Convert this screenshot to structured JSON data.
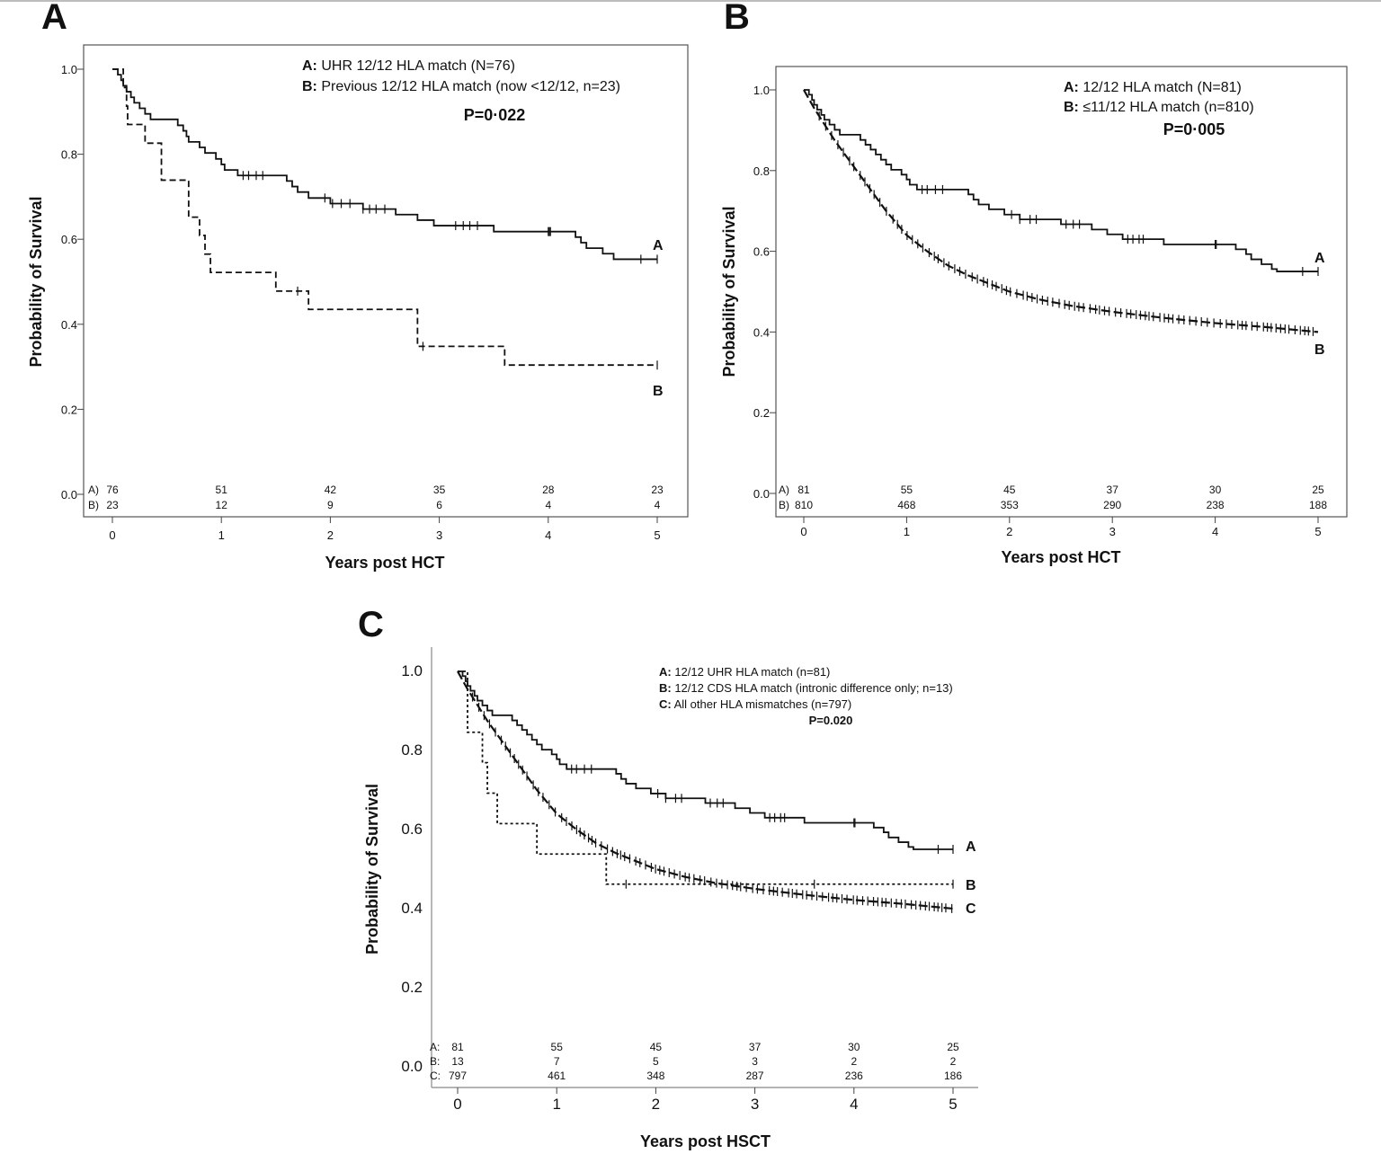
{
  "chart_data": [
    {
      "panel": "A",
      "type": "line",
      "xlabel": "Years post HCT",
      "ylabel": "Probability of Survival",
      "xlim": [
        0,
        5
      ],
      "ylim": [
        0,
        1
      ],
      "xticks": [
        "0",
        "1",
        "2",
        "3",
        "4",
        "5"
      ],
      "yticks": [
        "0.0",
        "0.2",
        "0.4",
        "0.6",
        "0.8",
        "1.0"
      ],
      "legend": {
        "position": "top-right",
        "entries": [
          {
            "key": "A:",
            "text": "UHR 12/12 HLA match (N=76)"
          },
          {
            "key": "B:",
            "text": "Previous 12/12 HLA match (now <12/12, n=23)"
          }
        ]
      },
      "pvalue": "P=0·022",
      "series": [
        {
          "label": "A",
          "style": "solid",
          "steps": [
            [
              0,
              1.0
            ],
            [
              0.05,
              0.987
            ],
            [
              0.08,
              0.974
            ],
            [
              0.1,
              0.961
            ],
            [
              0.13,
              0.947
            ],
            [
              0.17,
              0.934
            ],
            [
              0.2,
              0.921
            ],
            [
              0.25,
              0.908
            ],
            [
              0.3,
              0.895
            ],
            [
              0.35,
              0.882
            ],
            [
              0.6,
              0.868
            ],
            [
              0.65,
              0.855
            ],
            [
              0.68,
              0.842
            ],
            [
              0.7,
              0.829
            ],
            [
              0.8,
              0.816
            ],
            [
              0.85,
              0.803
            ],
            [
              0.95,
              0.789
            ],
            [
              1.0,
              0.776
            ],
            [
              1.03,
              0.763
            ],
            [
              1.15,
              0.75
            ],
            [
              1.6,
              0.737
            ],
            [
              1.65,
              0.724
            ],
            [
              1.7,
              0.711
            ],
            [
              1.8,
              0.697
            ],
            [
              2.0,
              0.684
            ],
            [
              2.3,
              0.671
            ],
            [
              2.6,
              0.658
            ],
            [
              2.8,
              0.645
            ],
            [
              2.95,
              0.632
            ],
            [
              3.5,
              0.618
            ],
            [
              4.25,
              0.605
            ],
            [
              4.3,
              0.592
            ],
            [
              4.35,
              0.579
            ],
            [
              4.5,
              0.566
            ],
            [
              4.6,
              0.553
            ],
            [
              5.0,
              0.553
            ]
          ],
          "censor": [
            1.2,
            1.25,
            1.32,
            1.38,
            1.95,
            2.02,
            2.1,
            2.18,
            2.3,
            2.36,
            2.42,
            2.5,
            3.15,
            3.22,
            3.28,
            3.35,
            4.0,
            4.01,
            4.02,
            4.85,
            5.0
          ]
        },
        {
          "label": "B",
          "style": "dashed",
          "steps": [
            [
              0,
              1.0
            ],
            [
              0.1,
              0.957
            ],
            [
              0.13,
              0.913
            ],
            [
              0.14,
              0.87
            ],
            [
              0.3,
              0.826
            ],
            [
              0.45,
              0.783
            ],
            [
              0.45,
              0.739
            ],
            [
              0.7,
              0.696
            ],
            [
              0.7,
              0.652
            ],
            [
              0.8,
              0.609
            ],
            [
              0.85,
              0.565
            ],
            [
              0.9,
              0.522
            ],
            [
              1.5,
              0.478
            ],
            [
              1.8,
              0.435
            ],
            [
              2.8,
              0.391
            ],
            [
              2.8,
              0.348
            ],
            [
              3.6,
              0.304
            ],
            [
              5.0,
              0.304
            ]
          ],
          "censor": [
            1.7,
            2.85,
            5.0
          ]
        }
      ],
      "risk_table": {
        "rows": [
          {
            "label": "A)",
            "values": [
              "76",
              "51",
              "42",
              "35",
              "28",
              "23"
            ]
          },
          {
            "label": "B)",
            "values": [
              "23",
              "12",
              "9",
              "6",
              "4",
              "4"
            ]
          }
        ]
      },
      "end_labels": [
        "A",
        "B"
      ]
    },
    {
      "panel": "B",
      "type": "line",
      "xlabel": "Years post HCT",
      "ylabel": "Probability of Survival",
      "xlim": [
        0,
        5
      ],
      "ylim": [
        0,
        1
      ],
      "xticks": [
        "0",
        "1",
        "2",
        "3",
        "4",
        "5"
      ],
      "yticks": [
        "0.0",
        "0.2",
        "0.4",
        "0.6",
        "0.8",
        "1.0"
      ],
      "legend": {
        "position": "top-right",
        "entries": [
          {
            "key": "A:",
            "text": "12/12 HLA match (N=81)"
          },
          {
            "key": "B:",
            "text": "≤11/12 HLA match (n=810)"
          }
        ]
      },
      "pvalue": "P=0·005",
      "series": [
        {
          "label": "A",
          "style": "solid",
          "steps": [
            [
              0,
              1.0
            ],
            [
              0.05,
              0.988
            ],
            [
              0.08,
              0.975
            ],
            [
              0.1,
              0.963
            ],
            [
              0.13,
              0.951
            ],
            [
              0.17,
              0.938
            ],
            [
              0.2,
              0.926
            ],
            [
              0.25,
              0.914
            ],
            [
              0.3,
              0.901
            ],
            [
              0.35,
              0.889
            ],
            [
              0.5,
              0.889
            ],
            [
              0.55,
              0.876
            ],
            [
              0.6,
              0.864
            ],
            [
              0.65,
              0.852
            ],
            [
              0.7,
              0.84
            ],
            [
              0.75,
              0.827
            ],
            [
              0.8,
              0.815
            ],
            [
              0.85,
              0.802
            ],
            [
              0.95,
              0.79
            ],
            [
              1.0,
              0.778
            ],
            [
              1.03,
              0.765
            ],
            [
              1.1,
              0.753
            ],
            [
              1.6,
              0.741
            ],
            [
              1.65,
              0.728
            ],
            [
              1.7,
              0.716
            ],
            [
              1.8,
              0.704
            ],
            [
              1.95,
              0.691
            ],
            [
              2.1,
              0.679
            ],
            [
              2.5,
              0.667
            ],
            [
              2.8,
              0.654
            ],
            [
              2.95,
              0.642
            ],
            [
              3.1,
              0.63
            ],
            [
              3.5,
              0.617
            ],
            [
              4.2,
              0.605
            ],
            [
              4.3,
              0.593
            ],
            [
              4.35,
              0.58
            ],
            [
              4.45,
              0.568
            ],
            [
              4.55,
              0.556
            ],
            [
              4.6,
              0.55
            ],
            [
              5.0,
              0.55
            ]
          ],
          "censor": [
            1.15,
            1.2,
            1.28,
            1.35,
            2.02,
            2.1,
            2.2,
            2.26,
            2.55,
            2.62,
            2.68,
            3.15,
            3.2,
            3.26,
            3.3,
            4.0,
            4.01,
            4.85,
            5.0
          ]
        },
        {
          "label": "B",
          "style": "dashed-curve",
          "points": [
            [
              0,
              1.0
            ],
            [
              0.1,
              0.955
            ],
            [
              0.2,
              0.915
            ],
            [
              0.3,
              0.875
            ],
            [
              0.4,
              0.84
            ],
            [
              0.5,
              0.805
            ],
            [
              0.6,
              0.77
            ],
            [
              0.7,
              0.735
            ],
            [
              0.8,
              0.7
            ],
            [
              0.9,
              0.67
            ],
            [
              1.0,
              0.64
            ],
            [
              1.2,
              0.6
            ],
            [
              1.4,
              0.565
            ],
            [
              1.6,
              0.54
            ],
            [
              1.8,
              0.52
            ],
            [
              2.0,
              0.5
            ],
            [
              2.3,
              0.48
            ],
            [
              2.6,
              0.465
            ],
            [
              3.0,
              0.45
            ],
            [
              3.5,
              0.435
            ],
            [
              4.0,
              0.422
            ],
            [
              4.5,
              0.412
            ],
            [
              5.0,
              0.4
            ]
          ],
          "censor_density": "dense"
        }
      ],
      "risk_table": {
        "rows": [
          {
            "label": "A)",
            "values": [
              "81",
              "55",
              "45",
              "37",
              "30",
              "25"
            ]
          },
          {
            "label": "B)",
            "values": [
              "810",
              "468",
              "353",
              "290",
              "238",
              "188"
            ]
          }
        ]
      },
      "end_labels": [
        "A",
        "B"
      ]
    },
    {
      "panel": "C",
      "type": "line",
      "xlabel": "Years post HSCT",
      "ylabel": "Probability of Survival",
      "xlim": [
        0,
        5
      ],
      "ylim": [
        0,
        1
      ],
      "xticks": [
        "0",
        "1",
        "2",
        "3",
        "4",
        "5"
      ],
      "yticks": [
        "0.0",
        "0.2",
        "0.4",
        "0.6",
        "0.8",
        "1.0"
      ],
      "legend": {
        "position": "top-right",
        "entries": [
          {
            "key": "A:",
            "text": "12/12 UHR HLA match (n=81)"
          },
          {
            "key": "B:",
            "text": "12/12 CDS HLA match (intronic difference only; n=13)"
          },
          {
            "key": "C:",
            "text": "All other HLA mismatches (n=797)"
          }
        ]
      },
      "pvalue": "P=0.020",
      "series": [
        {
          "label": "A",
          "style": "solid",
          "steps": [
            [
              0,
              1.0
            ],
            [
              0.05,
              0.988
            ],
            [
              0.08,
              0.975
            ],
            [
              0.1,
              0.963
            ],
            [
              0.13,
              0.951
            ],
            [
              0.17,
              0.938
            ],
            [
              0.2,
              0.926
            ],
            [
              0.25,
              0.914
            ],
            [
              0.3,
              0.901
            ],
            [
              0.35,
              0.889
            ],
            [
              0.5,
              0.889
            ],
            [
              0.55,
              0.876
            ],
            [
              0.6,
              0.864
            ],
            [
              0.65,
              0.852
            ],
            [
              0.7,
              0.84
            ],
            [
              0.75,
              0.827
            ],
            [
              0.8,
              0.815
            ],
            [
              0.85,
              0.802
            ],
            [
              0.95,
              0.79
            ],
            [
              1.0,
              0.778
            ],
            [
              1.03,
              0.765
            ],
            [
              1.1,
              0.753
            ],
            [
              1.6,
              0.741
            ],
            [
              1.65,
              0.728
            ],
            [
              1.7,
              0.716
            ],
            [
              1.8,
              0.704
            ],
            [
              1.95,
              0.691
            ],
            [
              2.1,
              0.679
            ],
            [
              2.5,
              0.667
            ],
            [
              2.8,
              0.654
            ],
            [
              2.95,
              0.642
            ],
            [
              3.1,
              0.63
            ],
            [
              3.5,
              0.617
            ],
            [
              4.2,
              0.605
            ],
            [
              4.3,
              0.593
            ],
            [
              4.35,
              0.58
            ],
            [
              4.45,
              0.568
            ],
            [
              4.55,
              0.556
            ],
            [
              4.6,
              0.55
            ],
            [
              5.0,
              0.55
            ]
          ],
          "censor": [
            1.15,
            1.2,
            1.28,
            1.35,
            2.02,
            2.1,
            2.2,
            2.26,
            2.55,
            2.62,
            2.68,
            3.15,
            3.2,
            3.26,
            3.3,
            4.0,
            4.01,
            4.85,
            5.0
          ]
        },
        {
          "label": "B",
          "style": "dotted",
          "steps": [
            [
              0,
              1.0
            ],
            [
              0.1,
              0.923
            ],
            [
              0.1,
              0.846
            ],
            [
              0.25,
              0.769
            ],
            [
              0.3,
              0.692
            ],
            [
              0.4,
              0.615
            ],
            [
              0.8,
              0.538
            ],
            [
              1.5,
              0.462
            ],
            [
              5.0,
              0.462
            ]
          ],
          "censor": [
            1.7,
            3.6,
            5.0
          ]
        },
        {
          "label": "C",
          "style": "dashed-curve",
          "points": [
            [
              0,
              1.0
            ],
            [
              0.1,
              0.955
            ],
            [
              0.2,
              0.915
            ],
            [
              0.3,
              0.875
            ],
            [
              0.4,
              0.84
            ],
            [
              0.5,
              0.805
            ],
            [
              0.6,
              0.77
            ],
            [
              0.7,
              0.735
            ],
            [
              0.8,
              0.7
            ],
            [
              0.9,
              0.67
            ],
            [
              1.0,
              0.64
            ],
            [
              1.2,
              0.6
            ],
            [
              1.4,
              0.565
            ],
            [
              1.6,
              0.54
            ],
            [
              1.8,
              0.52
            ],
            [
              2.0,
              0.5
            ],
            [
              2.3,
              0.48
            ],
            [
              2.6,
              0.465
            ],
            [
              3.0,
              0.45
            ],
            [
              3.5,
              0.435
            ],
            [
              4.0,
              0.422
            ],
            [
              4.5,
              0.412
            ],
            [
              5.0,
              0.4
            ]
          ],
          "censor_density": "dense"
        }
      ],
      "risk_table": {
        "rows": [
          {
            "label": "A:",
            "values": [
              "81",
              "55",
              "45",
              "37",
              "30",
              "25"
            ]
          },
          {
            "label": "B:",
            "values": [
              "13",
              "7",
              "5",
              "3",
              "2",
              "2"
            ]
          },
          {
            "label": "C:",
            "values": [
              "797",
              "461",
              "348",
              "287",
              "236",
              "186"
            ]
          }
        ]
      },
      "end_labels": [
        "A",
        "B",
        "C"
      ]
    }
  ]
}
